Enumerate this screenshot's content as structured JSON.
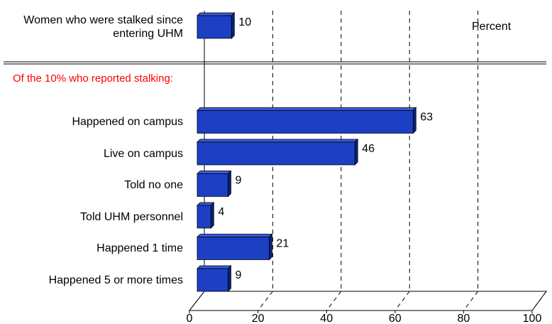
{
  "chart_data": {
    "type": "bar",
    "orientation": "horizontal",
    "categories": [
      "Women who were stalked since entering UHM",
      "Happened on campus",
      "Live on campus",
      "Told no one",
      "Told UHM personnel",
      "Happened 1 time",
      "Happened 5 or more times"
    ],
    "values": [
      10,
      63,
      46,
      9,
      4,
      21,
      9
    ],
    "color": "#1c3fc4",
    "annotations": [
      "Of the 10% who reported stalking:"
    ],
    "axis_label": "Percent",
    "xlim": [
      0,
      100
    ],
    "xticks": [
      0,
      20,
      40,
      60,
      80,
      100
    ],
    "grid": true
  }
}
